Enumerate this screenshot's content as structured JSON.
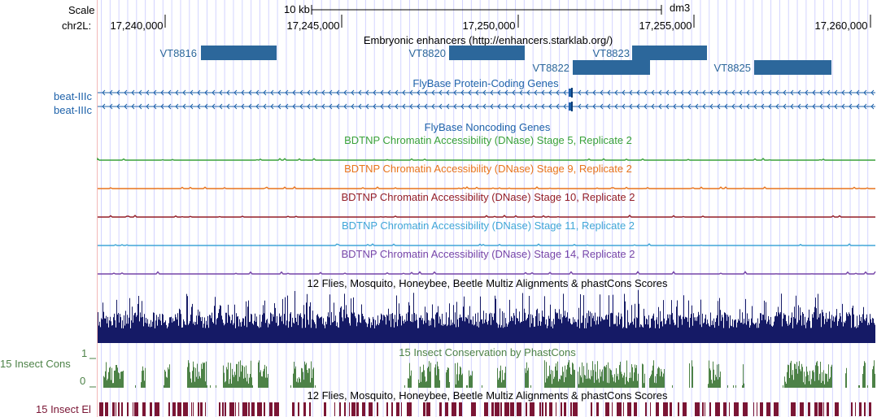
{
  "ruler": {
    "scale_label": "Scale",
    "assembly": "dm3",
    "scale_bar_text": "10 kb",
    "chrom_label": "chr2L:",
    "positions": [
      "17,240,000",
      "17,245,000",
      "17,250,000",
      "17,255,000",
      "17,260,000"
    ]
  },
  "colors": {
    "guide": "#d3d4ff",
    "left_border": "#f3b8b8",
    "enhancer": "#2c679b",
    "gene": "#1e62aa",
    "stage5": "#3aa23a",
    "stage9": "#e8741b",
    "stage10": "#931d27",
    "stage11": "#40a6d7",
    "stage14": "#7645a8",
    "multiz": "#151a66",
    "phastcons": "#4d8247",
    "elements": "#7a1534"
  },
  "tracks": {
    "enhancers": {
      "title": "Embryonic enhancers (http://enhancers.starklab.org/)",
      "items": [
        "VT8816",
        "VT8820",
        "VT8822",
        "VT8823",
        "VT8825"
      ]
    },
    "protein_coding": {
      "title": "FlyBase Protein-Coding Genes",
      "genes": [
        "beat-IIIc",
        "beat-IIIc"
      ]
    },
    "noncoding": {
      "title": "FlyBase Noncoding Genes"
    },
    "dnase": [
      "BDTNP Chromatin Accessibility (DNase) Stage 5, Replicate 2",
      "BDTNP Chromatin Accessibility (DNase) Stage 9, Replicate 2",
      "BDTNP Chromatin Accessibility (DNase) Stage 10, Replicate 2",
      "BDTNP Chromatin Accessibility (DNase) Stage 11, Replicate 2",
      "BDTNP Chromatin Accessibility (DNase) Stage 14, Replicate 2"
    ],
    "multiz": {
      "title": "12 Flies, Mosquito, Honeybee, Beetle Multiz Alignments & phastCons Scores"
    },
    "phastcons": {
      "title": "15 Insect Conservation by PhastCons",
      "side_label": "15 Insect Cons",
      "max_label": "1",
      "min_label": "0"
    },
    "elements": {
      "title": "12 Flies, Mosquito, Honeybee, Beetle Multiz Alignments & phastCons Scores",
      "side_label": "15 Insect El"
    }
  }
}
